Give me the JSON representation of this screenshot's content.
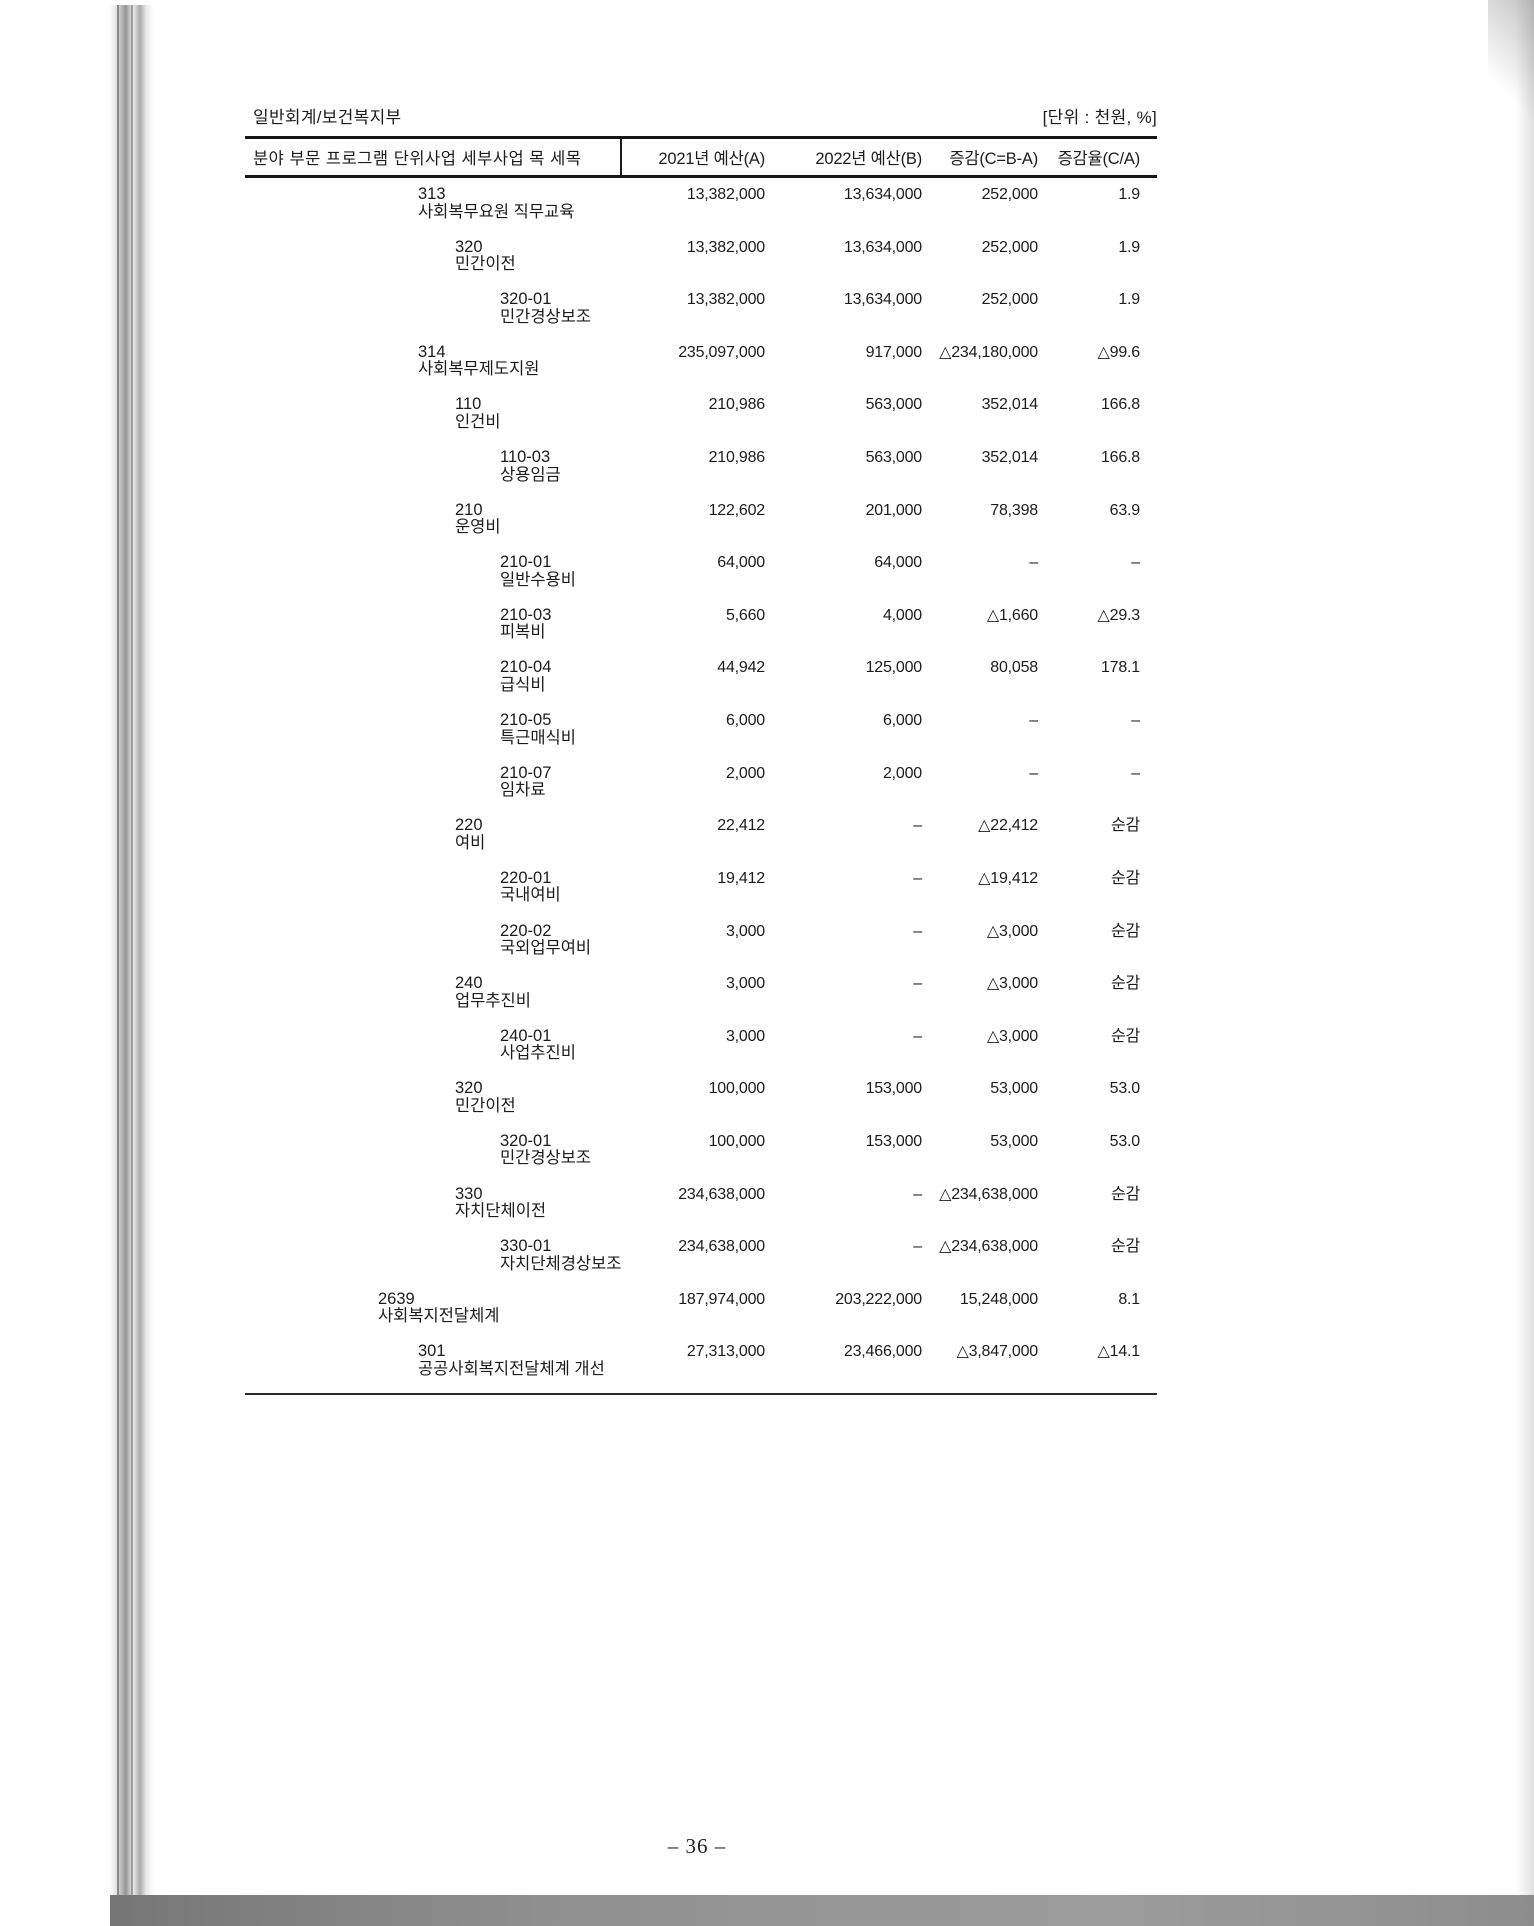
{
  "page": {
    "account_label": "일반회계/보건복지부",
    "unit_label": "[단위 : 천원, %]",
    "page_number": "– 36 –"
  },
  "table": {
    "item_header": "분야 부문 프로그램 단위사업 세부사업 목 세목",
    "columns": [
      "2021년 예산(A)",
      "2022년 예산(B)",
      "증감(C=B-A)",
      "증감율(C/A)"
    ],
    "rows": [
      {
        "code": "313",
        "name": "사회복무요원 직무교육",
        "level": 2,
        "a": "13,382,000",
        "b": "13,634,000",
        "c": "252,000",
        "d": "1.9"
      },
      {
        "code": "320",
        "name": "민간이전",
        "level": 3,
        "a": "13,382,000",
        "b": "13,634,000",
        "c": "252,000",
        "d": "1.9"
      },
      {
        "code": "320-01",
        "name": "민간경상보조",
        "level": 4,
        "a": "13,382,000",
        "b": "13,634,000",
        "c": "252,000",
        "d": "1.9"
      },
      {
        "code": "314",
        "name": "사회복무제도지원",
        "level": 2,
        "a": "235,097,000",
        "b": "917,000",
        "c": "△234,180,000",
        "d": "△99.6"
      },
      {
        "code": "110",
        "name": "인건비",
        "level": 3,
        "a": "210,986",
        "b": "563,000",
        "c": "352,014",
        "d": "166.8"
      },
      {
        "code": "110-03",
        "name": "상용임금",
        "level": 4,
        "a": "210,986",
        "b": "563,000",
        "c": "352,014",
        "d": "166.8"
      },
      {
        "code": "210",
        "name": "운영비",
        "level": 3,
        "a": "122,602",
        "b": "201,000",
        "c": "78,398",
        "d": "63.9"
      },
      {
        "code": "210-01",
        "name": "일반수용비",
        "level": 4,
        "a": "64,000",
        "b": "64,000",
        "c": "–",
        "d": "–"
      },
      {
        "code": "210-03",
        "name": "피복비",
        "level": 4,
        "a": "5,660",
        "b": "4,000",
        "c": "△1,660",
        "d": "△29.3"
      },
      {
        "code": "210-04",
        "name": "급식비",
        "level": 4,
        "a": "44,942",
        "b": "125,000",
        "c": "80,058",
        "d": "178.1"
      },
      {
        "code": "210-05",
        "name": "특근매식비",
        "level": 4,
        "a": "6,000",
        "b": "6,000",
        "c": "–",
        "d": "–"
      },
      {
        "code": "210-07",
        "name": "임차료",
        "level": 4,
        "a": "2,000",
        "b": "2,000",
        "c": "–",
        "d": "–"
      },
      {
        "code": "220",
        "name": "여비",
        "level": 3,
        "a": "22,412",
        "b": "–",
        "c": "△22,412",
        "d": "순감"
      },
      {
        "code": "220-01",
        "name": "국내여비",
        "level": 4,
        "a": "19,412",
        "b": "–",
        "c": "△19,412",
        "d": "순감"
      },
      {
        "code": "220-02",
        "name": "국외업무여비",
        "level": 4,
        "a": "3,000",
        "b": "–",
        "c": "△3,000",
        "d": "순감"
      },
      {
        "code": "240",
        "name": "업무추진비",
        "level": 3,
        "a": "3,000",
        "b": "–",
        "c": "△3,000",
        "d": "순감"
      },
      {
        "code": "240-01",
        "name": "사업추진비",
        "level": 4,
        "a": "3,000",
        "b": "–",
        "c": "△3,000",
        "d": "순감"
      },
      {
        "code": "320",
        "name": "민간이전",
        "level": 3,
        "a": "100,000",
        "b": "153,000",
        "c": "53,000",
        "d": "53.0"
      },
      {
        "code": "320-01",
        "name": "민간경상보조",
        "level": 4,
        "a": "100,000",
        "b": "153,000",
        "c": "53,000",
        "d": "53.0"
      },
      {
        "code": "330",
        "name": "자치단체이전",
        "level": 3,
        "a": "234,638,000",
        "b": "–",
        "c": "△234,638,000",
        "d": "순감"
      },
      {
        "code": "330-01",
        "name": "자치단체경상보조",
        "level": 4,
        "a": "234,638,000",
        "b": "–",
        "c": "△234,638,000",
        "d": "순감"
      },
      {
        "code": "2639",
        "name": "사회복지전달체계",
        "level": 1,
        "a": "187,974,000",
        "b": "203,222,000",
        "c": "15,248,000",
        "d": "8.1"
      },
      {
        "code": "301",
        "name": "공공사회복지전달체계 개선",
        "level": 2,
        "a": "27,313,000",
        "b": "23,466,000",
        "c": "△3,847,000",
        "d": "△14.1"
      }
    ]
  }
}
